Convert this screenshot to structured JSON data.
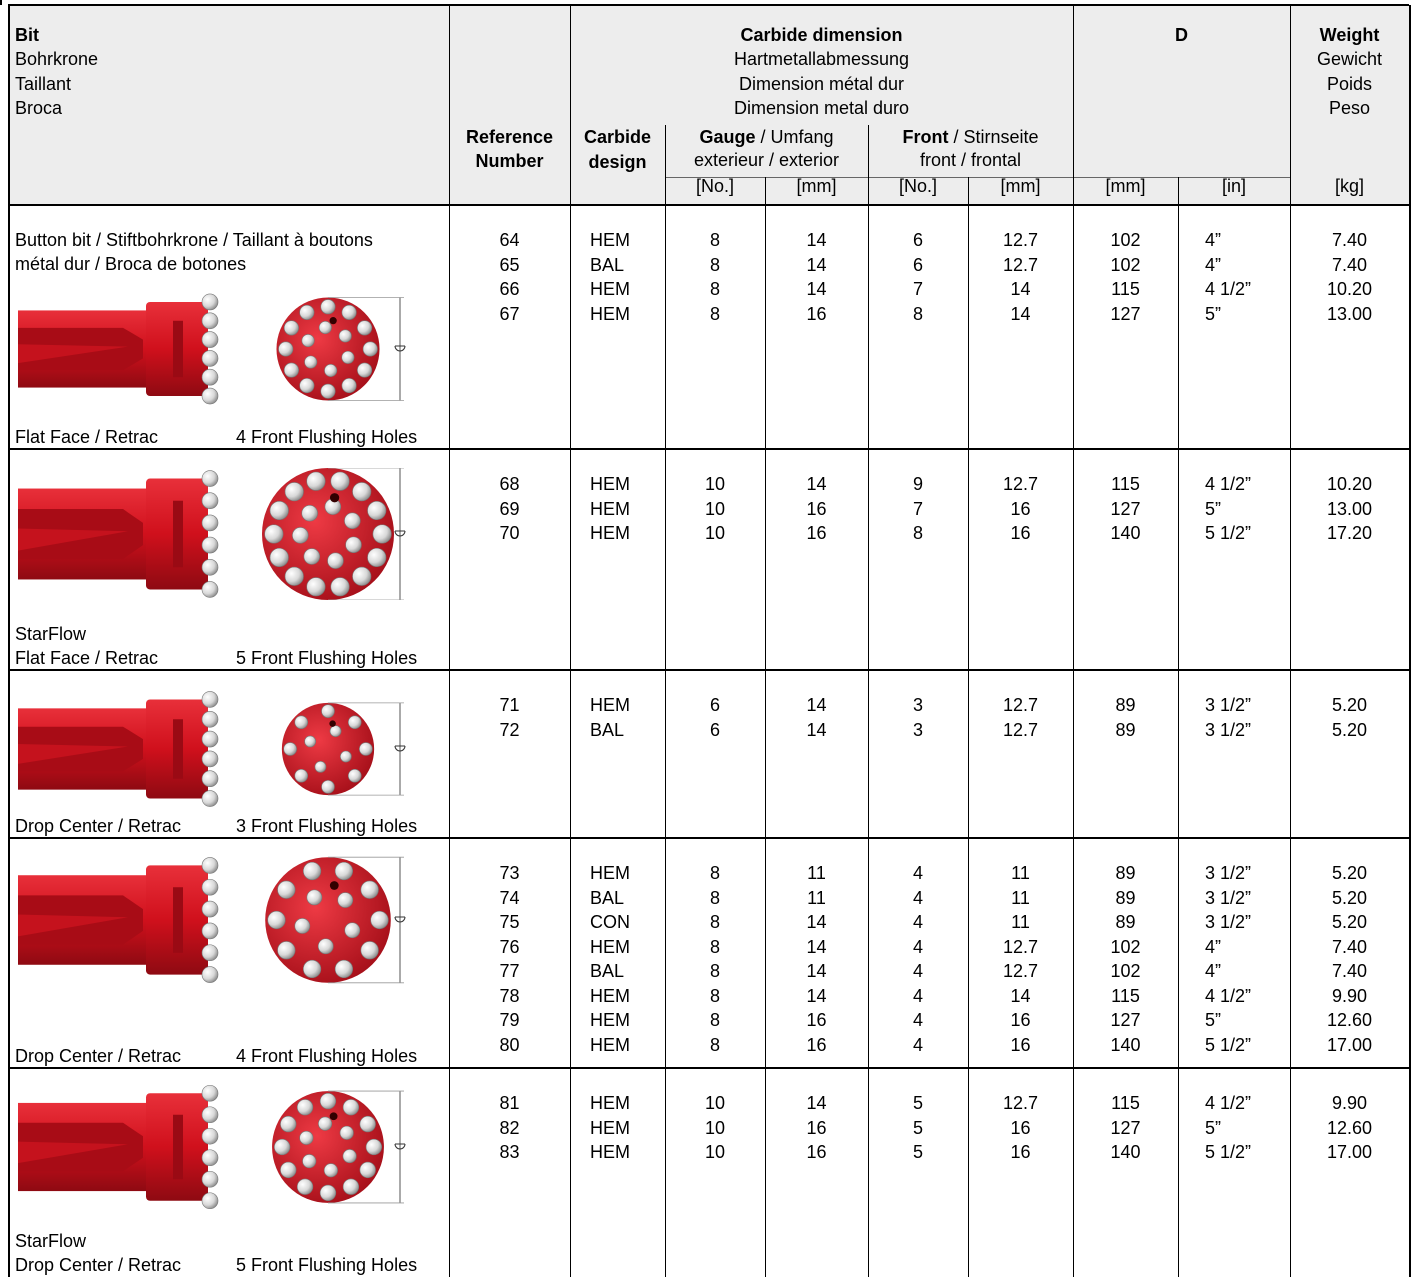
{
  "header": {
    "bit": [
      "Bit",
      "Bohrkrone",
      "Taillant",
      "Broca"
    ],
    "carbide_dimension": [
      "Carbide dimension",
      "Hartmetallabmessung",
      "Dimension métal dur",
      "Dimension metal duro"
    ],
    "d": "D",
    "weight": [
      "Weight",
      "Gewicht",
      "Poids",
      "Peso"
    ],
    "reference_number": [
      "Reference",
      "Number"
    ],
    "carbide_design": [
      "Carbide",
      "design"
    ],
    "gauge": [
      "Gauge",
      " / Umfang",
      "exterieur / exterior"
    ],
    "front": [
      "Front",
      " / Stirnseite",
      "front / frontal"
    ],
    "units": [
      "[No.]",
      "[mm]",
      "[No.]",
      "[mm]",
      "[mm]",
      "[in]",
      "[kg]"
    ]
  },
  "groups": [
    {
      "intro": [
        "Button bit / Stiftbohrkrone / Taillant à boutons",
        "métal dur / Broca de botones"
      ],
      "face": "Flat Face / Retrac",
      "holes": "4 Front Flushing Holes",
      "rows": [
        [
          "64",
          "HEM",
          "8",
          "14",
          "6",
          "12.7",
          "102",
          "4”",
          "7.40"
        ],
        [
          "65",
          "BAL",
          "8",
          "14",
          "6",
          "12.7",
          "102",
          "4”",
          "7.40"
        ],
        [
          "66",
          "HEM",
          "8",
          "14",
          "7",
          "14",
          "115",
          "4 1/2”",
          "10.20"
        ],
        [
          "67",
          "HEM",
          "8",
          "16",
          "8",
          "14",
          "127",
          "5”",
          "13.00"
        ]
      ]
    },
    {
      "name": "StarFlow",
      "face": "Flat Face / Retrac",
      "holes": "5 Front Flushing Holes",
      "rows": [
        [
          "68",
          "HEM",
          "10",
          "14",
          "9",
          "12.7",
          "115",
          "4 1/2”",
          "10.20"
        ],
        [
          "69",
          "HEM",
          "10",
          "16",
          "7",
          "16",
          "127",
          "5”",
          "13.00"
        ],
        [
          "70",
          "HEM",
          "10",
          "16",
          "8",
          "16",
          "140",
          "5 1/2”",
          "17.20"
        ]
      ]
    },
    {
      "face": "Drop Center / Retrac",
      "holes": "3 Front Flushing Holes",
      "rows": [
        [
          "71",
          "HEM",
          "6",
          "14",
          "3",
          "12.7",
          "89",
          "3 1/2”",
          "5.20"
        ],
        [
          "72",
          "BAL",
          "6",
          "14",
          "3",
          "12.7",
          "89",
          "3 1/2”",
          "5.20"
        ]
      ]
    },
    {
      "face": "Drop Center / Retrac",
      "holes": "4 Front Flushing Holes",
      "rows": [
        [
          "73",
          "HEM",
          "8",
          "11",
          "4",
          "11",
          "89",
          "3 1/2”",
          "5.20"
        ],
        [
          "74",
          "BAL",
          "8",
          "11",
          "4",
          "11",
          "89",
          "3 1/2”",
          "5.20"
        ],
        [
          "75",
          "CON",
          "8",
          "14",
          "4",
          "11",
          "89",
          "3 1/2”",
          "5.20"
        ],
        [
          "76",
          "HEM",
          "8",
          "14",
          "4",
          "12.7",
          "102",
          "4”",
          "7.40"
        ],
        [
          "77",
          "BAL",
          "8",
          "14",
          "4",
          "12.7",
          "102",
          "4”",
          "7.40"
        ],
        [
          "78",
          "HEM",
          "8",
          "14",
          "4",
          "14",
          "115",
          "4 1/2”",
          "9.90"
        ],
        [
          "79",
          "HEM",
          "8",
          "16",
          "4",
          "16",
          "127",
          "5”",
          "12.60"
        ],
        [
          "80",
          "HEM",
          "8",
          "16",
          "4",
          "16",
          "140",
          "5 1/2”",
          "17.00"
        ]
      ]
    },
    {
      "name": "StarFlow",
      "face": "Drop Center / Retrac",
      "holes": "5 Front Flushing Holes",
      "rows": [
        [
          "81",
          "HEM",
          "10",
          "14",
          "5",
          "12.7",
          "115",
          "4 1/2”",
          "9.90"
        ],
        [
          "82",
          "HEM",
          "10",
          "16",
          "5",
          "16",
          "127",
          "5”",
          "12.60"
        ],
        [
          "83",
          "HEM",
          "10",
          "16",
          "5",
          "16",
          "140",
          "5 1/2”",
          "17.00"
        ]
      ]
    }
  ]
}
